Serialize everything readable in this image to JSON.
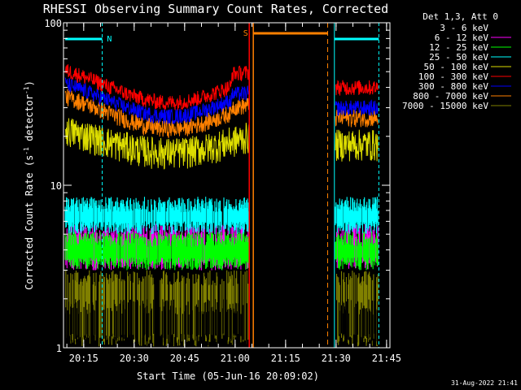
{
  "chart_data": {
    "type": "line",
    "title": "RHESSI Observing Summary Count Rates, Corrected",
    "xlabel": "Start Time (05-Jun-16 20:09:02)",
    "ylabel_main": "Corrected Count Rate (s",
    "ylabel_sup1": "-1",
    "ylabel_mid": " detector",
    "ylabel_sup2": "-1",
    "ylabel_end": ")",
    "y_scale": "log",
    "ylim": [
      1,
      100
    ],
    "xlim_minutes": [
      0,
      97
    ],
    "x_ticks": [
      {
        "label": "20:15",
        "minute": 6
      },
      {
        "label": "20:30",
        "minute": 21
      },
      {
        "label": "20:45",
        "minute": 36
      },
      {
        "label": "21:00",
        "minute": 51
      },
      {
        "label": "21:15",
        "minute": 66
      },
      {
        "label": "21:30",
        "minute": 81
      },
      {
        "label": "21:45",
        "minute": 96
      }
    ],
    "y_ticks": [
      {
        "label": "100",
        "value": 100
      },
      {
        "label": "10",
        "value": 10
      },
      {
        "label": "1",
        "value": 1
      }
    ],
    "legend_header": "Det 1,3, Att 0",
    "legend_placement": "right",
    "series": [
      {
        "name": "3 - 6 keV",
        "color": "#000000"
      },
      {
        "name": "6 - 12 keV",
        "color": "#ff00ff"
      },
      {
        "name": "12 - 25 keV",
        "color": "#00ff00"
      },
      {
        "name": "25 - 50 keV",
        "color": "#00ffff"
      },
      {
        "name": "50 - 100 keV",
        "color": "#dddd00"
      },
      {
        "name": "100 - 300 keV",
        "color": "#ff0000"
      },
      {
        "name": "300 - 800 keV",
        "color": "#0000ff"
      },
      {
        "name": "800 - 7000 keV",
        "color": "#ff8000"
      },
      {
        "name": "7000 - 15000 keV",
        "color": "#808000"
      }
    ],
    "annotations": [
      {
        "label": "N",
        "color": "#00ffff"
      },
      {
        "label": "S",
        "color": "#ff8000"
      }
    ],
    "timestamp": "31-Aug-2022 21:41"
  }
}
